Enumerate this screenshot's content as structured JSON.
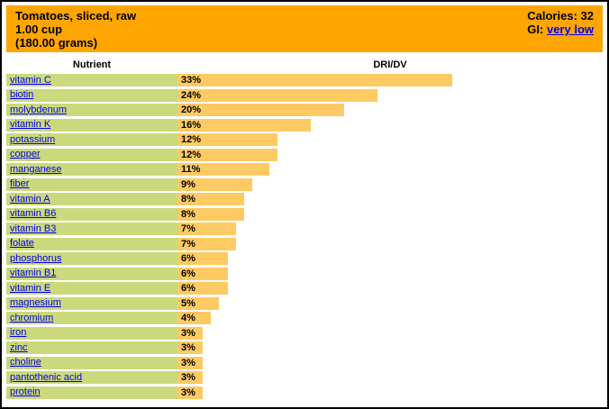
{
  "header": {
    "title_line1": "Tomatoes, sliced, raw",
    "title_line2": "1.00 cup",
    "title_line3": "(180.00 grams)",
    "calories_label": "Calories:",
    "calories_value": "32",
    "gi_label": "GI:",
    "gi_value": "very low"
  },
  "columns": {
    "nutrient": "Nutrient",
    "dri_dv": "DRI/DV"
  },
  "colors": {
    "header_bg": "#ffa500",
    "row_bg": "#cbd97c",
    "bar_fill": "#fdca63",
    "link_color": "#0000ee",
    "border_color": "#000000",
    "text_color": "#000000"
  },
  "chart_data": {
    "type": "bar",
    "orientation": "horizontal",
    "title": "Tomatoes, sliced, raw",
    "subtitle": "1.00 cup (180.00 grams)",
    "xlabel": "DRI/DV",
    "ylabel": "Nutrient",
    "unit": "%",
    "xlim": [
      0,
      51
    ],
    "grid": false,
    "legend": false,
    "categories": [
      "vitamin C",
      "biotin",
      "molybdenum",
      "vitamin K",
      "potassium",
      "copper",
      "manganese",
      "fiber",
      "vitamin A",
      "vitamin B6",
      "vitamin B3",
      "folate",
      "phosphorus",
      "vitamin B1",
      "vitamin E",
      "magnesium",
      "chromium",
      "iron",
      "zinc",
      "choline",
      "pantothenic acid",
      "protein"
    ],
    "values": [
      33,
      24,
      20,
      16,
      12,
      12,
      11,
      9,
      8,
      8,
      7,
      7,
      6,
      6,
      6,
      5,
      4,
      3,
      3,
      3,
      3,
      3
    ]
  }
}
